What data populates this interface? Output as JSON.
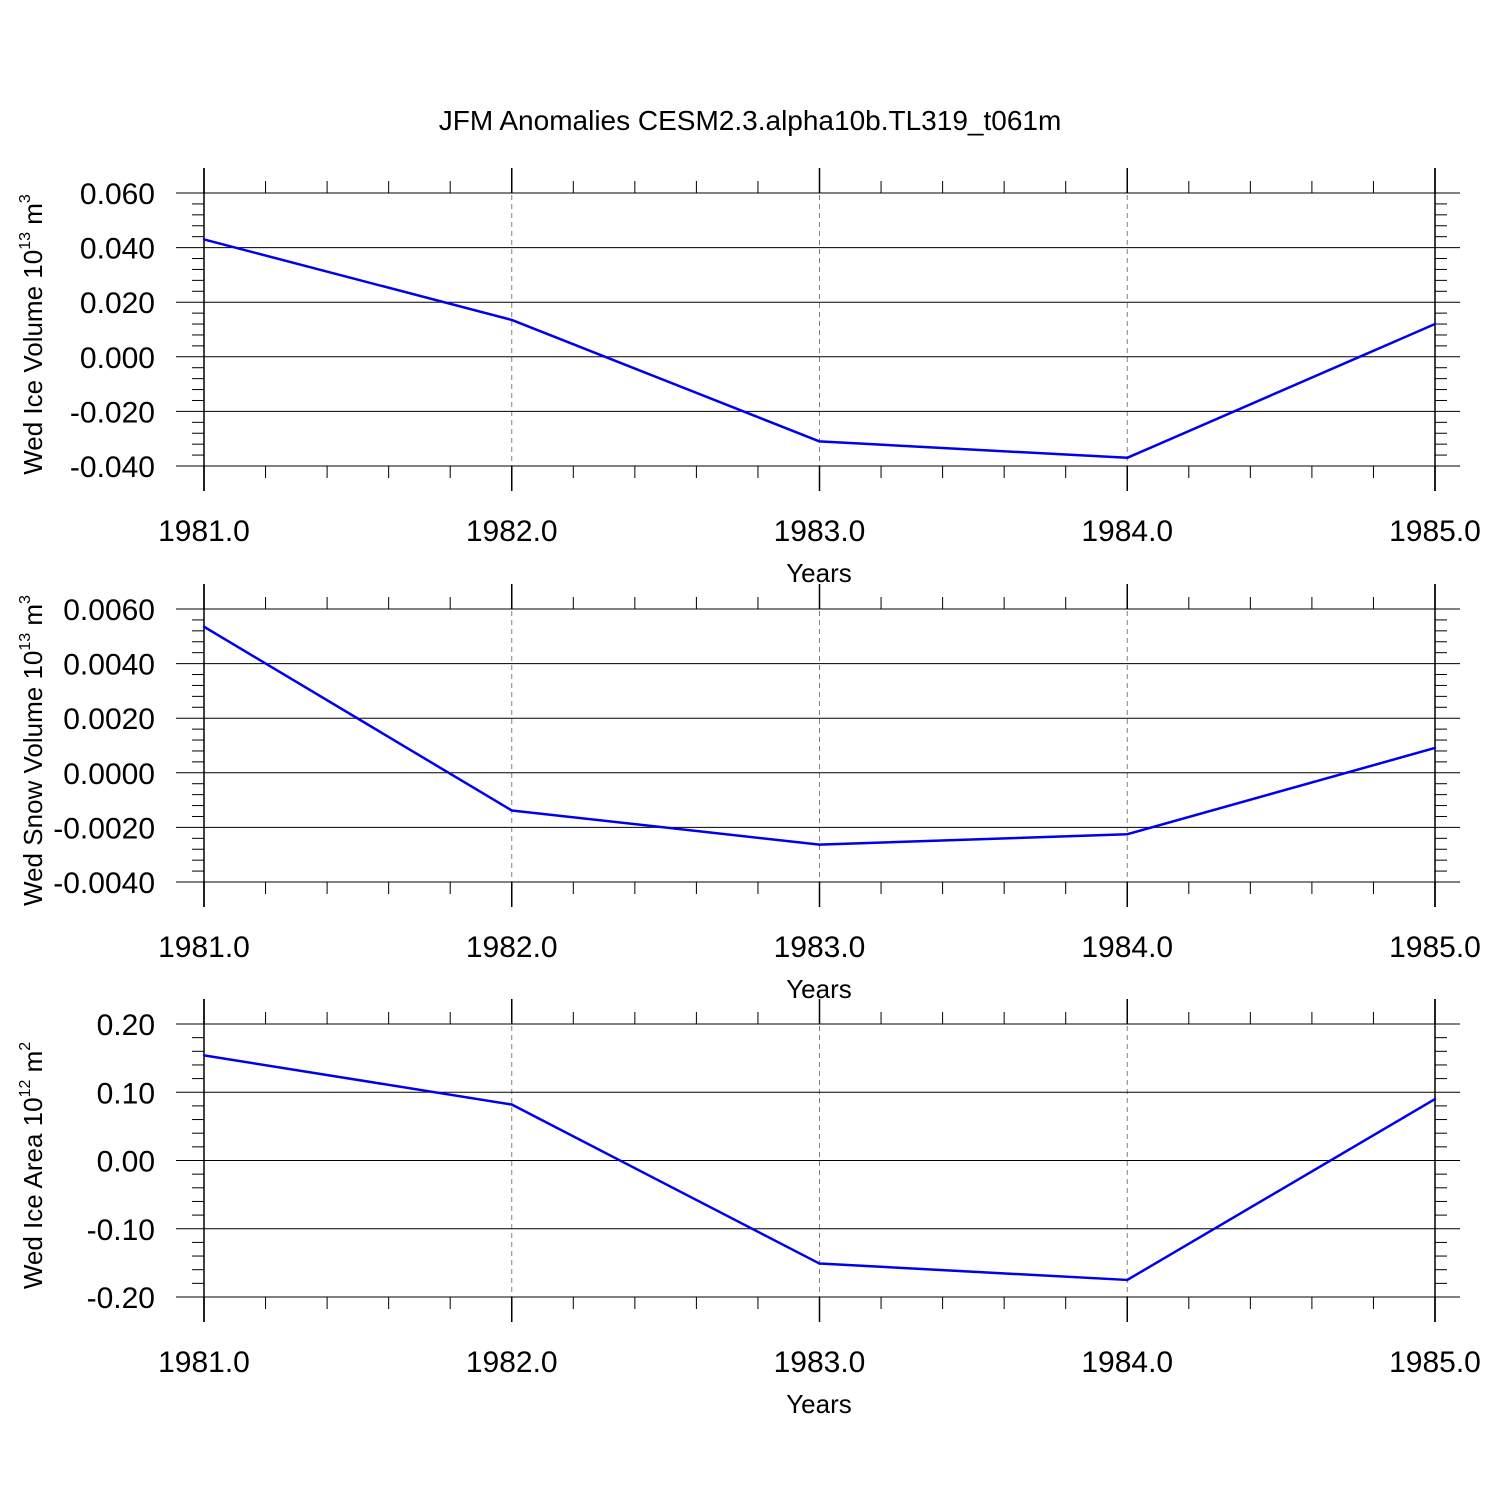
{
  "title": "JFM Anomalies CESM2.3.alpha10b.TL319_t061m",
  "colors": {
    "line": "#0000ee",
    "axis": "#000000",
    "grid": "#808080"
  },
  "chart_data": [
    {
      "type": "line",
      "title": "",
      "xlabel": "Years",
      "ylabel": {
        "main": "Wed Ice Volume 10",
        "exp": "13",
        "unit": " m",
        "unit_exp": "3"
      },
      "x": [
        1981.0,
        1982.0,
        1983.0,
        1984.0,
        1985.0
      ],
      "values": [
        0.043,
        0.0135,
        -0.031,
        -0.037,
        0.012
      ],
      "xlim": [
        1981.0,
        1985.0
      ],
      "ylim": [
        -0.04,
        0.06
      ],
      "x_ticks": [
        "1981.0",
        "1982.0",
        "1983.0",
        "1984.0",
        "1985.0"
      ],
      "y_ticks": [
        "-0.040",
        "-0.020",
        "0.000",
        "0.020",
        "0.040",
        "0.060"
      ],
      "grid": "vertical dashed"
    },
    {
      "type": "line",
      "title": "",
      "xlabel": "Years",
      "ylabel": {
        "main": "Wed Snow Volume 10",
        "exp": "13",
        "unit": " m",
        "unit_exp": "3"
      },
      "x": [
        1981.0,
        1982.0,
        1983.0,
        1984.0,
        1985.0
      ],
      "values": [
        0.00535,
        -0.00138,
        -0.00263,
        -0.00225,
        0.00091
      ],
      "xlim": [
        1981.0,
        1985.0
      ],
      "ylim": [
        -0.004,
        0.006
      ],
      "x_ticks": [
        "1981.0",
        "1982.0",
        "1983.0",
        "1984.0",
        "1985.0"
      ],
      "y_ticks": [
        "-0.0040",
        "-0.0020",
        "0.0000",
        "0.0020",
        "0.0040",
        "0.0060"
      ],
      "grid": "vertical dashed"
    },
    {
      "type": "line",
      "title": "",
      "xlabel": "Years",
      "ylabel": {
        "main": "Wed Ice Area 10",
        "exp": "12",
        "unit": " m",
        "unit_exp": "2"
      },
      "x": [
        1981.0,
        1982.0,
        1983.0,
        1984.0,
        1985.0
      ],
      "values": [
        0.154,
        0.082,
        -0.151,
        -0.175,
        0.09
      ],
      "xlim": [
        1981.0,
        1985.0
      ],
      "ylim": [
        -0.2,
        0.2
      ],
      "x_ticks": [
        "1981.0",
        "1982.0",
        "1983.0",
        "1984.0",
        "1985.0"
      ],
      "y_ticks": [
        "-0.20",
        "-0.10",
        "0.00",
        "0.10",
        "0.20"
      ],
      "grid": "vertical dashed"
    }
  ]
}
